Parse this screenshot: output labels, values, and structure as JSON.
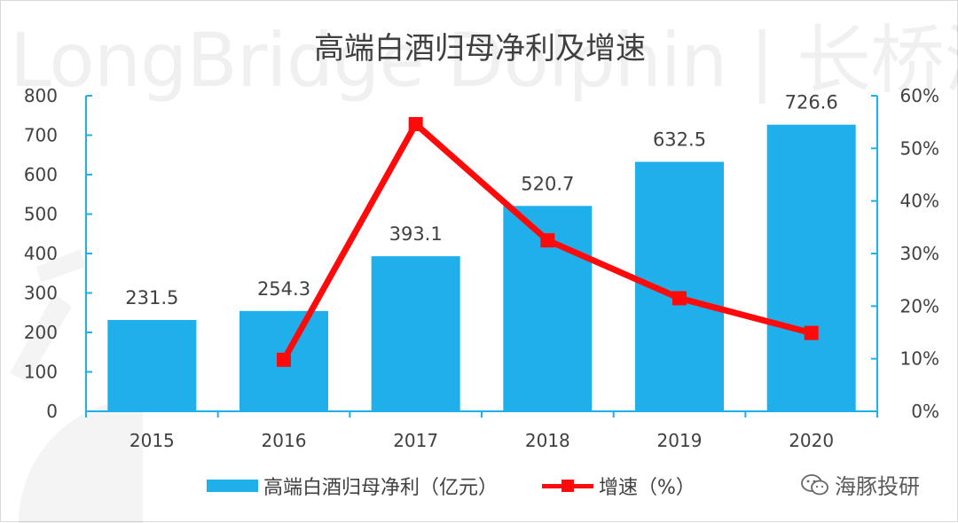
{
  "watermark": {
    "text": "LongBridge Dolphin | 长桥海豚投研"
  },
  "chart_data": {
    "type": "bar",
    "title": "高端白酒归母净利及增速",
    "categories": [
      "2015",
      "2016",
      "2017",
      "2018",
      "2019",
      "2020"
    ],
    "series": [
      {
        "name": "高端白酒归母净利（亿元）",
        "type": "bar",
        "axis": "left",
        "color": "#1fb0ec",
        "values": [
          231.5,
          254.3,
          393.1,
          520.7,
          632.5,
          726.6
        ],
        "labels": [
          "231.5",
          "254.3",
          "393.1",
          "520.7",
          "632.5",
          "726.6"
        ]
      },
      {
        "name": "增速（%）",
        "type": "line",
        "axis": "right",
        "color": "#ff0a0a",
        "values": [
          null,
          0.098,
          0.546,
          0.325,
          0.215,
          0.149
        ]
      }
    ],
    "y_left": {
      "min": 0,
      "max": 800,
      "ticks": [
        "0",
        "100",
        "200",
        "300",
        "400",
        "500",
        "600",
        "700",
        "800"
      ],
      "values": [
        0,
        100,
        200,
        300,
        400,
        500,
        600,
        700,
        800
      ]
    },
    "y_right": {
      "min": 0,
      "max": 0.6,
      "ticks": [
        "0%",
        "10%",
        "20%",
        "30%",
        "40%",
        "50%",
        "60%"
      ],
      "values": [
        0,
        0.1,
        0.2,
        0.3,
        0.4,
        0.5,
        0.6
      ]
    },
    "grid": false,
    "legend_position": "bottom",
    "axis_color": "#1fb0ec"
  },
  "source": {
    "icon": "wechat-icon",
    "label": "海豚投研"
  }
}
